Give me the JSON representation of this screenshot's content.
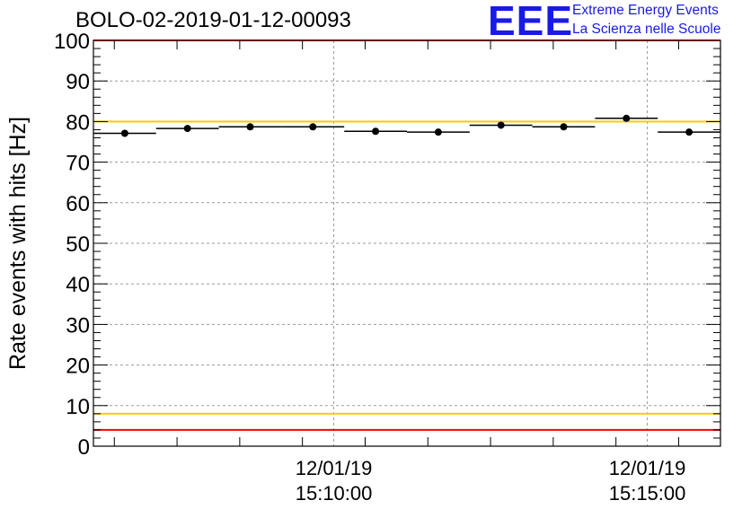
{
  "title": "BOLO-02-2019-01-12-00093",
  "logo": {
    "acronym": "EEE",
    "line1": "Extreme Energy Events",
    "line2": "La Scienza nelle Scuole",
    "color": "#1a1ae6"
  },
  "chart_data": {
    "type": "scatter",
    "title": "BOLO-02-2019-01-12-00093",
    "xlabel": "",
    "ylabel": "Rate events with hits [Hz]",
    "ylim": [
      0,
      100
    ],
    "yticks": [
      0,
      10,
      20,
      30,
      40,
      50,
      60,
      70,
      80,
      90,
      100
    ],
    "xticks": [
      {
        "date": "12/01/19",
        "time": "15:10:00"
      },
      {
        "date": "12/01/19",
        "time": "15:15:00"
      }
    ],
    "grid": true,
    "series": [
      {
        "marker": "circle",
        "color": "#000000",
        "x": [
          "15:06:40",
          "15:07:40",
          "15:08:40",
          "15:09:40",
          "15:10:40",
          "15:11:40",
          "15:12:40",
          "15:13:40",
          "15:14:40",
          "15:15:40"
        ],
        "values": [
          77.1,
          78.3,
          78.7,
          78.7,
          77.6,
          77.4,
          79.1,
          78.7,
          80.8,
          77.4
        ],
        "errors": [
          0.8,
          0.8,
          0.8,
          0.8,
          0.8,
          0.8,
          0.8,
          0.8,
          0.8,
          0.8
        ]
      }
    ],
    "reference_lines": [
      {
        "value": 100,
        "color": "#ff0000"
      },
      {
        "value": 80,
        "color": "#ffcc00"
      },
      {
        "value": 8,
        "color": "#ffcc00"
      },
      {
        "value": 4,
        "color": "#ff0000"
      }
    ]
  }
}
